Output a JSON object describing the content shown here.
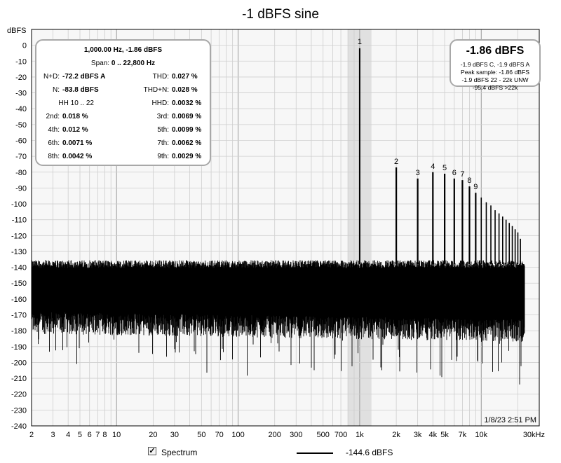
{
  "chart_data": {
    "type": "line",
    "title": "-1 dBFS sine",
    "ylabel": "dBFS",
    "xlabel": "",
    "x_unit": "kHz",
    "x_scale": "log",
    "xlim": [
      2,
      30000
    ],
    "ylim": [
      -240,
      10
    ],
    "grid": true,
    "y_ticks": [
      0,
      -10,
      -20,
      -30,
      -40,
      -50,
      -60,
      -70,
      -80,
      -90,
      -100,
      -110,
      -120,
      -130,
      -140,
      -150,
      -160,
      -170,
      -180,
      -190,
      -200,
      -210,
      -220,
      -230,
      -240
    ],
    "x_ticks": [
      {
        "value": 2,
        "label": "2"
      },
      {
        "value": 3,
        "label": "3"
      },
      {
        "value": 4,
        "label": "4"
      },
      {
        "value": 5,
        "label": "5"
      },
      {
        "value": 6,
        "label": "6"
      },
      {
        "value": 7,
        "label": "7"
      },
      {
        "value": 8,
        "label": "8"
      },
      {
        "value": 10,
        "label": "10"
      },
      {
        "value": 20,
        "label": "20"
      },
      {
        "value": 30,
        "label": "30"
      },
      {
        "value": 50,
        "label": "50"
      },
      {
        "value": 70,
        "label": "70"
      },
      {
        "value": 100,
        "label": "100"
      },
      {
        "value": 200,
        "label": "200"
      },
      {
        "value": 300,
        "label": "300"
      },
      {
        "value": 500,
        "label": "500"
      },
      {
        "value": 700,
        "label": "700"
      },
      {
        "value": 1000,
        "label": "1k"
      },
      {
        "value": 2000,
        "label": "2k"
      },
      {
        "value": 3000,
        "label": "3k"
      },
      {
        "value": 4000,
        "label": "4k"
      },
      {
        "value": 5000,
        "label": "5k"
      },
      {
        "value": 7000,
        "label": "7k"
      },
      {
        "value": 10000,
        "label": "10k"
      },
      {
        "value": 30000,
        "label": "30kHz"
      }
    ],
    "highlight_band": [
      800,
      1250
    ],
    "series": [
      {
        "name": "Spectrum",
        "fundamental": {
          "x": 1000,
          "y": -1.86,
          "label": "1"
        },
        "harmonics": [
          {
            "label": "2",
            "x": 2000,
            "y": -77
          },
          {
            "label": "3",
            "x": 3000,
            "y": -84
          },
          {
            "label": "4",
            "x": 4000,
            "y": -80
          },
          {
            "label": "5",
            "x": 5000,
            "y": -81
          },
          {
            "label": "6",
            "x": 6000,
            "y": -84
          },
          {
            "label": "7",
            "x": 7000,
            "y": -85
          },
          {
            "label": "8",
            "x": 8000,
            "y": -89
          },
          {
            "label": "9",
            "x": 9000,
            "y": -93
          }
        ],
        "higher_harmonics": [
          {
            "x": 10000,
            "y": -96
          },
          {
            "x": 11000,
            "y": -99
          },
          {
            "x": 12000,
            "y": -101
          },
          {
            "x": 13000,
            "y": -104
          },
          {
            "x": 14000,
            "y": -106
          },
          {
            "x": 15000,
            "y": -108
          },
          {
            "x": 16000,
            "y": -110
          },
          {
            "x": 17000,
            "y": -112
          },
          {
            "x": 18000,
            "y": -114
          },
          {
            "x": 19000,
            "y": -116
          },
          {
            "x": 20000,
            "y": -118
          },
          {
            "x": 21000,
            "y": -122
          }
        ],
        "noise_floor_top": -138,
        "noise_floor_bottom": -175,
        "noise_xlim": [
          2,
          22800
        ]
      }
    ],
    "legend": {
      "entries": [
        {
          "label": "Spectrum",
          "checked": true,
          "value": "-144.6 dBFS"
        }
      ]
    },
    "timestamp": "1/8/23 2:51 PM"
  },
  "stats_panel": {
    "title": "1,000.00 Hz, -1.86 dBFS",
    "span_label": "Span:",
    "span_value": "0 .. 22,800 Hz",
    "rows": [
      {
        "l_label": "N+D:",
        "l_value": "-72.2 dBFS A",
        "r_label": "THD:",
        "r_value": "0.027 %"
      },
      {
        "l_label": "N:",
        "l_value": "-83.8 dBFS",
        "r_label": "THD+N:",
        "r_value": "0.028 %"
      },
      {
        "l_label": "HH 10 .. 22",
        "l_value": "",
        "r_label": "HHD:",
        "r_value": "0.0032 %"
      },
      {
        "l_label": "2nd:",
        "l_value": "0.018 %",
        "r_label": "3rd:",
        "r_value": "0.0069 %"
      },
      {
        "l_label": "4th:",
        "l_value": "0.012 %",
        "r_label": "5th:",
        "r_value": "0.0099 %"
      },
      {
        "l_label": "6th:",
        "l_value": "0.0071 %",
        "r_label": "7th:",
        "r_value": "0.0062 %"
      },
      {
        "l_label": "8th:",
        "l_value": "0.0042 %",
        "r_label": "9th:",
        "r_value": "0.0029 %"
      }
    ]
  },
  "level_panel": {
    "big": "-1.86 dBFS",
    "lines": [
      "-1.9 dBFS C, -1.9 dBFS A",
      "Peak sample: -1.86 dBFS",
      "-1.9 dBFS 22 - 22k UNW",
      "-95.4 dBFS >22k"
    ]
  },
  "footer": {
    "checkbox_label": "Spectrum",
    "legend_value": "-144.6 dBFS"
  }
}
